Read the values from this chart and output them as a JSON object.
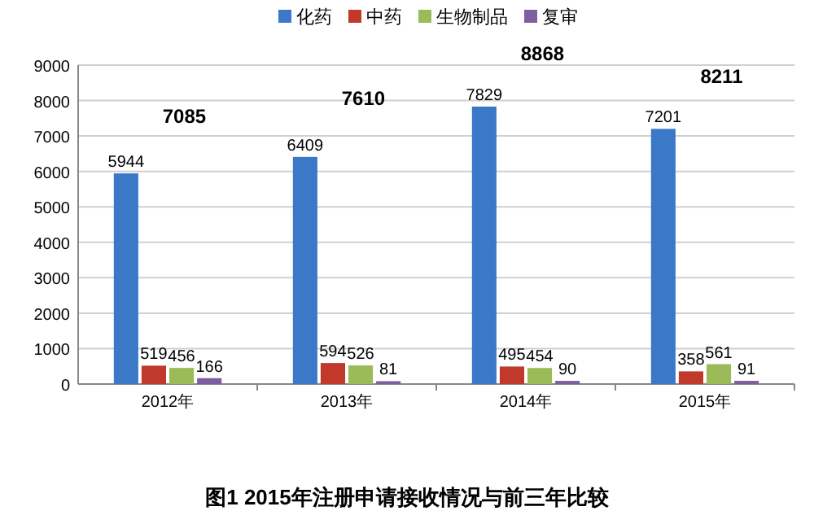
{
  "chart_data": {
    "type": "bar",
    "title": "图1 2015年注册申请接收情况与前三年比较",
    "categories": [
      "2012年",
      "2013年",
      "2014年",
      "2015年"
    ],
    "series": [
      {
        "name": "化药",
        "color": "#3b78c8",
        "values": [
          5944,
          6409,
          7829,
          7201
        ]
      },
      {
        "name": "中药",
        "color": "#c0392b",
        "values": [
          519,
          594,
          495,
          358
        ]
      },
      {
        "name": "生物制品",
        "color": "#9bbb59",
        "values": [
          456,
          526,
          454,
          561
        ]
      },
      {
        "name": "复审",
        "color": "#7d5fa0",
        "values": [
          166,
          81,
          90,
          91
        ]
      }
    ],
    "totals": [
      "7085",
      "7610",
      "8868",
      "8211"
    ],
    "ylim": [
      0,
      9000
    ],
    "yticks": [
      0,
      1000,
      2000,
      3000,
      4000,
      5000,
      6000,
      7000,
      8000,
      9000
    ],
    "grid": "y",
    "legend": "top",
    "data_labels": true
  }
}
